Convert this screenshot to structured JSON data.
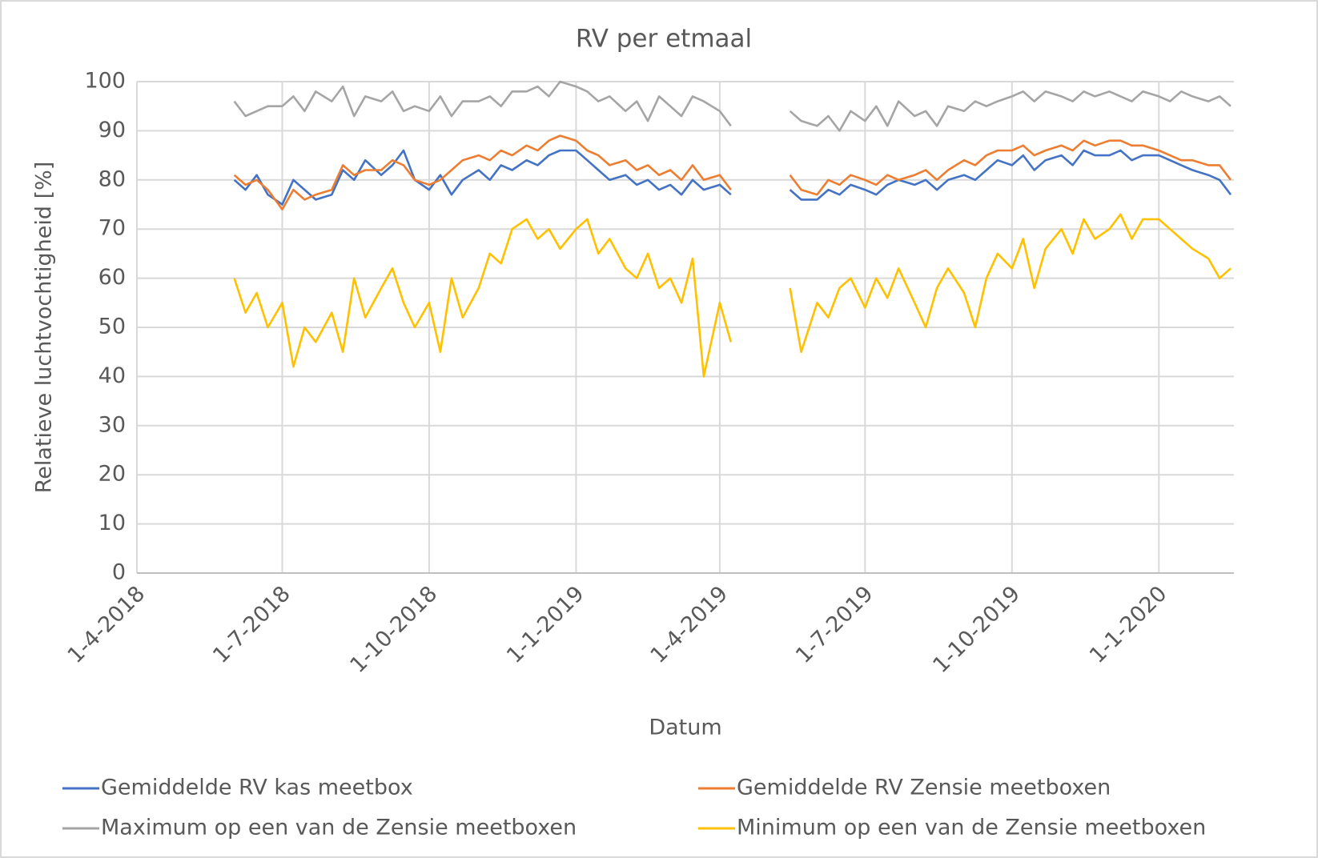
{
  "chart_data": {
    "type": "line",
    "title": "RV per etmaal",
    "x_label": "Datum",
    "y_label": "Relatieve luchtvochtigheid [%]",
    "x": [
      "1-6-2018",
      "8-6-2018",
      "15-6-2018",
      "22-6-2018",
      "1-7-2018",
      "8-7-2018",
      "15-7-2018",
      "22-7-2018",
      "1-8-2018",
      "8-8-2018",
      "15-8-2018",
      "22-8-2018",
      "1-9-2018",
      "8-9-2018",
      "15-9-2018",
      "22-9-2018",
      "1-10-2018",
      "8-10-2018",
      "15-10-2018",
      "22-10-2018",
      "1-11-2018",
      "8-11-2018",
      "15-11-2018",
      "22-11-2018",
      "1-12-2018",
      "8-12-2018",
      "15-12-2018",
      "22-12-2018",
      "1-1-2019",
      "8-1-2019",
      "15-1-2019",
      "22-1-2019",
      "1-2-2019",
      "8-2-2019",
      "15-2-2019",
      "22-2-2019",
      "1-3-2019",
      "8-3-2019",
      "15-3-2019",
      "22-3-2019",
      "1-4-2019",
      "8-4-2019",
      "1-5-2019",
      "15-5-2019",
      "22-5-2019",
      "1-6-2019",
      "8-6-2019",
      "15-6-2019",
      "22-6-2019",
      "1-7-2019",
      "8-7-2019",
      "15-7-2019",
      "22-7-2019",
      "1-8-2019",
      "8-8-2019",
      "15-8-2019",
      "22-8-2019",
      "1-9-2019",
      "8-9-2019",
      "15-9-2019",
      "22-9-2019",
      "1-10-2019",
      "8-10-2019",
      "15-10-2019",
      "22-10-2019",
      "1-11-2019",
      "8-11-2019",
      "15-11-2019",
      "22-11-2019",
      "1-12-2019",
      "8-12-2019",
      "15-12-2019",
      "22-12-2019",
      "1-1-2020",
      "8-1-2020",
      "15-1-2020",
      "22-1-2020",
      "1-2-2020",
      "8-2-2020",
      "15-2-2020"
    ],
    "series": [
      {
        "name": "Gemiddelde RV kas meetbox",
        "color": "#4472c4",
        "values": [
          80,
          78,
          81,
          77,
          75,
          80,
          78,
          76,
          77,
          82,
          80,
          84,
          81,
          83,
          86,
          80,
          78,
          81,
          77,
          80,
          82,
          80,
          83,
          82,
          84,
          83,
          85,
          86,
          86,
          84,
          82,
          80,
          81,
          79,
          80,
          78,
          79,
          77,
          80,
          78,
          79,
          77,
          null,
          78,
          76,
          76,
          78,
          77,
          79,
          78,
          77,
          79,
          80,
          79,
          80,
          78,
          80,
          81,
          80,
          82,
          84,
          83,
          85,
          82,
          84,
          85,
          83,
          86,
          85,
          85,
          86,
          84,
          85,
          85,
          84,
          83,
          82,
          81,
          80,
          77
        ]
      },
      {
        "name": "Gemiddelde RV Zensie meetboxen",
        "color": "#ed7d31",
        "values": [
          81,
          79,
          80,
          78,
          74,
          78,
          76,
          77,
          78,
          83,
          81,
          82,
          82,
          84,
          83,
          80,
          79,
          80,
          82,
          84,
          85,
          84,
          86,
          85,
          87,
          86,
          88,
          89,
          88,
          86,
          85,
          83,
          84,
          82,
          83,
          81,
          82,
          80,
          83,
          80,
          81,
          78,
          null,
          81,
          78,
          77,
          80,
          79,
          81,
          80,
          79,
          81,
          80,
          81,
          82,
          80,
          82,
          84,
          83,
          85,
          86,
          86,
          87,
          85,
          86,
          87,
          86,
          88,
          87,
          88,
          88,
          87,
          87,
          86,
          85,
          84,
          84,
          83,
          83,
          80
        ]
      },
      {
        "name": "Maximum op een van de Zensie meetboxen",
        "color": "#a5a5a5",
        "values": [
          96,
          93,
          94,
          95,
          95,
          97,
          94,
          98,
          96,
          99,
          93,
          97,
          96,
          98,
          94,
          95,
          94,
          97,
          93,
          96,
          96,
          97,
          95,
          98,
          98,
          99,
          97,
          100,
          99,
          98,
          96,
          97,
          94,
          96,
          92,
          97,
          95,
          93,
          97,
          96,
          94,
          91,
          null,
          94,
          92,
          91,
          93,
          90,
          94,
          92,
          95,
          91,
          96,
          93,
          94,
          91,
          95,
          94,
          96,
          95,
          96,
          97,
          98,
          96,
          98,
          97,
          96,
          98,
          97,
          98,
          97,
          96,
          98,
          97,
          96,
          98,
          97,
          96,
          97,
          95
        ]
      },
      {
        "name": "Minimum op een van de Zensie meetboxen",
        "color": "#ffc000",
        "values": [
          60,
          53,
          57,
          50,
          55,
          42,
          50,
          47,
          53,
          45,
          60,
          52,
          58,
          62,
          55,
          50,
          55,
          45,
          60,
          52,
          58,
          65,
          63,
          70,
          72,
          68,
          70,
          66,
          70,
          72,
          65,
          68,
          62,
          60,
          65,
          58,
          60,
          55,
          64,
          40,
          55,
          47,
          null,
          58,
          45,
          55,
          52,
          58,
          60,
          54,
          60,
          56,
          62,
          55,
          50,
          58,
          62,
          57,
          50,
          60,
          65,
          62,
          68,
          58,
          66,
          70,
          65,
          72,
          68,
          70,
          73,
          68,
          72,
          72,
          70,
          68,
          66,
          64,
          60,
          62
        ]
      }
    ],
    "xlim": [
      "1-4-2018",
      "17-2-2020"
    ],
    "xticks": [
      "1-4-2018",
      "1-7-2018",
      "1-10-2018",
      "1-1-2019",
      "1-4-2019",
      "1-7-2019",
      "1-10-2019",
      "1-1-2020"
    ],
    "ylim": [
      0,
      100
    ],
    "yticks": [
      0,
      10,
      20,
      30,
      40,
      50,
      60,
      70,
      80,
      90,
      100
    ],
    "grid": true,
    "legend": "bottom"
  }
}
